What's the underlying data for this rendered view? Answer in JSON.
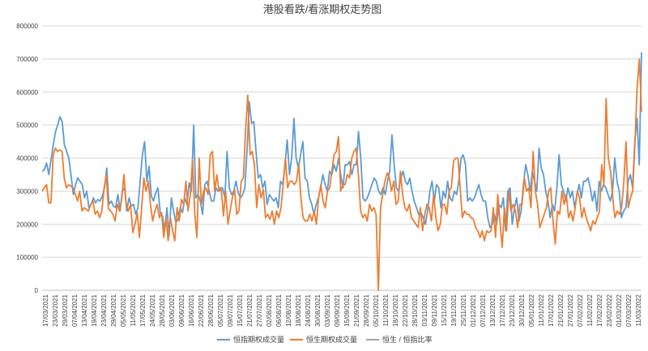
{
  "chart_data": {
    "type": "line",
    "title": "港股看跌/看涨期权走势图",
    "ylim": [
      0,
      800000
    ],
    "yticks": [
      "0",
      "100000",
      "200000",
      "300000",
      "400000",
      "500000",
      "600000",
      "700000",
      "800000"
    ],
    "xticks": [
      "17/03/2021",
      "23/03/2021",
      "29/03/2021",
      "07/04/2021",
      "13/04/2021",
      "19/04/2021",
      "23/04/2021",
      "29/04/2021",
      "05/05/2021",
      "11/05/2021",
      "17/05/2021",
      "24/05/2021",
      "28/05/2021",
      "03/06/2021",
      "09/06/2021",
      "16/06/2021",
      "22/06/2021",
      "28/06/2021",
      "05/07/2021",
      "09/07/2021",
      "15/07/2021",
      "21/07/2021",
      "27/07/2021",
      "02/08/2021",
      "06/08/2021",
      "12/08/2021",
      "18/08/2021",
      "24/08/2021",
      "30/08/2021",
      "03/09/2021",
      "09/09/2021",
      "15/09/2021",
      "21/09/2021",
      "28/09/2021",
      "05/10/2021",
      "11/10/2021",
      "18/10/2021",
      "22/10/2021",
      "28/10/2021",
      "03/11/2021",
      "09/11/2021",
      "15/11/2021",
      "19/11/2021",
      "25/11/2021",
      "01/12/2021",
      "07/12/2021",
      "13/12/2021",
      "17/12/2021",
      "23/12/2021",
      "30/12/2021",
      "05/01/2022",
      "11/01/2022",
      "17/01/2022",
      "21/01/2022",
      "27/01/2022",
      "07/02/2022",
      "11/02/2022",
      "17/02/2022",
      "23/02/2022",
      "01/03/2022",
      "07/03/2022",
      "11/03/2022"
    ],
    "grid": true,
    "legend_position": "bottom",
    "series": [
      {
        "name": "恒指期权成交量",
        "color": "#5b9bd5",
        "values": [
          360000,
          365000,
          385000,
          350000,
          395000,
          440000,
          480000,
          500000,
          525000,
          510000,
          440000,
          420000,
          400000,
          345000,
          290000,
          320000,
          340000,
          330000,
          320000,
          280000,
          300000,
          250000,
          260000,
          280000,
          265000,
          275000,
          270000,
          285000,
          310000,
          370000,
          260000,
          270000,
          255000,
          250000,
          290000,
          240000,
          300000,
          310000,
          240000,
          280000,
          255000,
          260000,
          230000,
          250000,
          330000,
          410000,
          450000,
          330000,
          375000,
          285000,
          270000,
          295000,
          310000,
          235000,
          225000,
          180000,
          250000,
          165000,
          280000,
          240000,
          205000,
          215000,
          250000,
          235000,
          280000,
          260000,
          325000,
          300000,
          500000,
          280000,
          290000,
          270000,
          230000,
          320000,
          330000,
          300000,
          270000,
          270000,
          310000,
          300000,
          310000,
          310000,
          280000,
          420000,
          310000,
          290000,
          300000,
          330000,
          295000,
          280000,
          290000,
          310000,
          430000,
          570000,
          505000,
          510000,
          420000,
          340000,
          350000,
          310000,
          330000,
          260000,
          290000,
          280000,
          270000,
          280000,
          250000,
          330000,
          320000,
          380000,
          455000,
          350000,
          400000,
          520000,
          400000,
          370000,
          410000,
          450000,
          340000,
          330000,
          280000,
          260000,
          230000,
          260000,
          280000,
          310000,
          350000,
          320000,
          300000,
          360000,
          350000,
          380000,
          360000,
          400000,
          350000,
          310000,
          380000,
          380000,
          390000,
          350000,
          380000,
          380000,
          480000,
          400000,
          280000,
          270000,
          280000,
          300000,
          320000,
          340000,
          330000,
          300000,
          290000,
          310000,
          290000,
          330000,
          360000,
          470000,
          380000,
          310000,
          300000,
          340000,
          360000,
          330000,
          320000,
          340000,
          300000,
          270000,
          250000,
          230000,
          235000,
          220000,
          200000,
          240000,
          300000,
          330000,
          270000,
          320000,
          310000,
          250000,
          300000,
          280000,
          330000,
          280000,
          270000,
          300000,
          290000,
          330000,
          400000,
          410000,
          380000,
          270000,
          280000,
          270000,
          280000,
          300000,
          320000,
          290000,
          270000,
          270000,
          220000,
          190000,
          200000,
          230000,
          200000,
          260000,
          250000,
          280000,
          180000,
          300000,
          310000,
          200000,
          250000,
          280000,
          210000,
          240000,
          320000,
          380000,
          350000,
          300000,
          360000,
          330000,
          300000,
          430000,
          370000,
          350000,
          300000,
          270000,
          220000,
          260000,
          240000,
          310000,
          410000,
          320000,
          300000,
          270000,
          310000,
          280000,
          300000,
          250000,
          290000,
          320000,
          280000,
          330000,
          330000,
          340000,
          310000,
          270000,
          300000,
          240000,
          330000,
          300000,
          320000,
          310000,
          290000,
          270000,
          300000,
          400000,
          330000,
          300000,
          220000,
          240000,
          250000,
          330000,
          350000,
          310000,
          450000,
          520000,
          380000,
          720000
        ]
      },
      {
        "name": "恒生期权成交量",
        "color": "#ed7d31",
        "values": [
          300000,
          310000,
          320000,
          265000,
          265000,
          410000,
          430000,
          420000,
          425000,
          420000,
          340000,
          310000,
          320000,
          315000,
          310000,
          290000,
          270000,
          300000,
          240000,
          250000,
          245000,
          240000,
          260000,
          270000,
          230000,
          240000,
          220000,
          240000,
          310000,
          350000,
          245000,
          240000,
          230000,
          210000,
          260000,
          240000,
          280000,
          350000,
          260000,
          240000,
          260000,
          175000,
          200000,
          235000,
          160000,
          250000,
          340000,
          300000,
          330000,
          260000,
          210000,
          240000,
          260000,
          220000,
          235000,
          160000,
          220000,
          150000,
          220000,
          180000,
          150000,
          250000,
          210000,
          275000,
          260000,
          330000,
          240000,
          290000,
          395000,
          235000,
          160000,
          400000,
          260000,
          300000,
          310000,
          290000,
          410000,
          420000,
          300000,
          350000,
          300000,
          305000,
          225000,
          300000,
          200000,
          240000,
          280000,
          305000,
          230000,
          240000,
          330000,
          340000,
          485000,
          590000,
          410000,
          420000,
          380000,
          250000,
          320000,
          280000,
          305000,
          220000,
          230000,
          215000,
          240000,
          200000,
          240000,
          220000,
          250000,
          320000,
          400000,
          310000,
          330000,
          330000,
          320000,
          330000,
          380000,
          280000,
          220000,
          210000,
          210000,
          230000,
          210000,
          240000,
          200000,
          280000,
          320000,
          270000,
          250000,
          300000,
          310000,
          360000,
          410000,
          420000,
          465000,
          300000,
          320000,
          320000,
          350000,
          340000,
          400000,
          420000,
          430000,
          350000,
          240000,
          220000,
          230000,
          210000,
          260000,
          240000,
          250000,
          230000,
          0,
          250000,
          290000,
          330000,
          355000,
          340000,
          300000,
          330000,
          260000,
          270000,
          360000,
          290000,
          250000,
          240000,
          260000,
          220000,
          210000,
          200000,
          190000,
          250000,
          180000,
          230000,
          260000,
          250000,
          210000,
          290000,
          220000,
          180000,
          200000,
          260000,
          260000,
          230000,
          300000,
          310000,
          390000,
          400000,
          400000,
          310000,
          220000,
          240000,
          230000,
          230000,
          220000,
          215000,
          190000,
          180000,
          160000,
          180000,
          150000,
          180000,
          175000,
          180000,
          250000,
          160000,
          290000,
          210000,
          130000,
          250000,
          180000,
          300000,
          240000,
          260000,
          240000,
          190000,
          260000,
          260000,
          340000,
          300000,
          310000,
          250000,
          420000,
          300000,
          260000,
          190000,
          210000,
          230000,
          250000,
          300000,
          310000,
          210000,
          140000,
          240000,
          230000,
          300000,
          260000,
          290000,
          220000,
          240000,
          210000,
          250000,
          300000,
          280000,
          220000,
          250000,
          220000,
          200000,
          180000,
          210000,
          200000,
          220000,
          240000,
          380000,
          320000,
          580000,
          400000,
          360000,
          280000,
          220000,
          240000,
          230000,
          250000,
          330000,
          450000,
          250000,
          280000,
          300000,
          440000,
          610000,
          700000,
          540000
        ]
      },
      {
        "name": "恒生 / 恒指比率",
        "color": "#a5a5a5",
        "values": []
      }
    ]
  }
}
